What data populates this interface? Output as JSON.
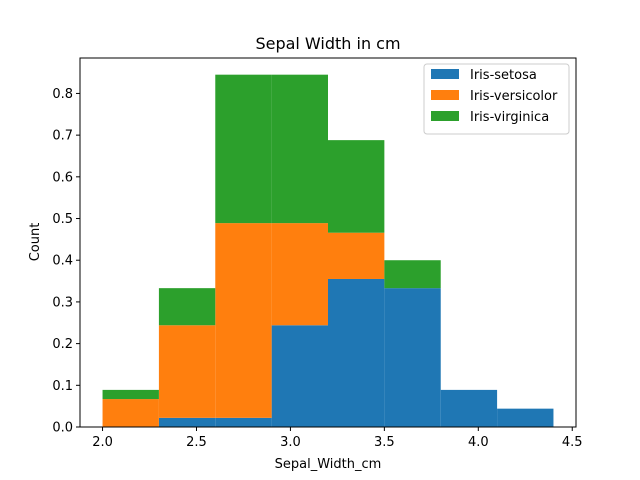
{
  "chart_data": {
    "type": "bar",
    "stacked": true,
    "title": "Sepal Width in cm",
    "xlabel": "Sepal_Width_cm",
    "ylabel": "Count",
    "xlim": [
      1.88,
      4.52
    ],
    "ylim": [
      0,
      0.885
    ],
    "xticks": [
      "2.0",
      "2.5",
      "3.0",
      "3.5",
      "4.0",
      "4.5"
    ],
    "yticks": [
      "0.0",
      "0.1",
      "0.2",
      "0.3",
      "0.4",
      "0.5",
      "0.6",
      "0.7",
      "0.8"
    ],
    "bin_edges": [
      2.0,
      2.3,
      2.6,
      2.9,
      3.2,
      3.5,
      3.8,
      4.1,
      4.4
    ],
    "series": [
      {
        "name": "Iris-setosa",
        "color": "#1f77b4",
        "values": [
          0.0,
          0.022,
          0.022,
          0.244,
          0.355,
          0.333,
          0.089,
          0.044
        ]
      },
      {
        "name": "Iris-versicolor",
        "color": "#ff7f0e",
        "values": [
          0.067,
          0.222,
          0.467,
          0.245,
          0.111,
          0.0,
          0.0,
          0.0
        ]
      },
      {
        "name": "Iris-virginica",
        "color": "#2ca02c",
        "values": [
          0.022,
          0.089,
          0.356,
          0.356,
          0.222,
          0.067,
          0.0,
          0.0
        ]
      }
    ],
    "legend_position": "top-right",
    "grid": false
  }
}
